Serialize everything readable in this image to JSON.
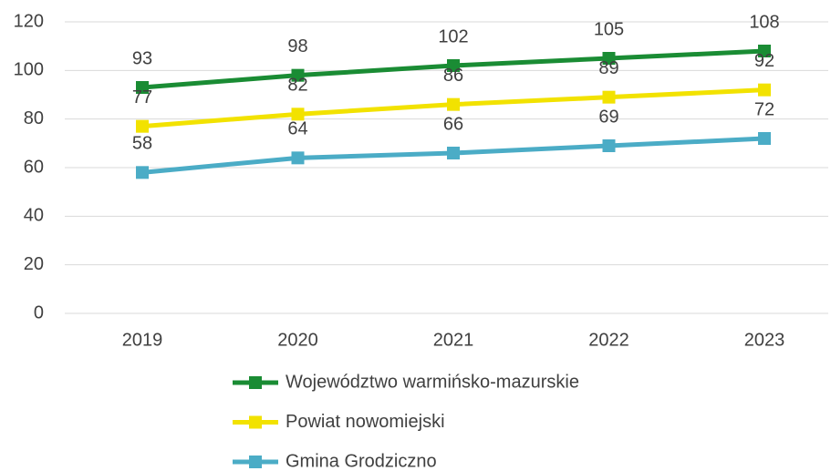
{
  "chart_data": {
    "type": "line",
    "categories": [
      "2019",
      "2020",
      "2021",
      "2022",
      "2023"
    ],
    "series": [
      {
        "name": "Województwo warmińsko-mazurskie",
        "color": "#1a8c34",
        "values": [
          93,
          98,
          102,
          105,
          108
        ]
      },
      {
        "name": "Powiat nowomiejski",
        "color": "#f2e200",
        "values": [
          77,
          82,
          86,
          89,
          92
        ]
      },
      {
        "name": "Gmina Grodziczno",
        "color": "#4bacc6",
        "values": [
          58,
          64,
          66,
          69,
          72
        ]
      }
    ],
    "ylim": [
      0,
      120
    ],
    "yticks": [
      0,
      20,
      40,
      60,
      80,
      100,
      120
    ],
    "grid": true,
    "legend": "bottom"
  }
}
